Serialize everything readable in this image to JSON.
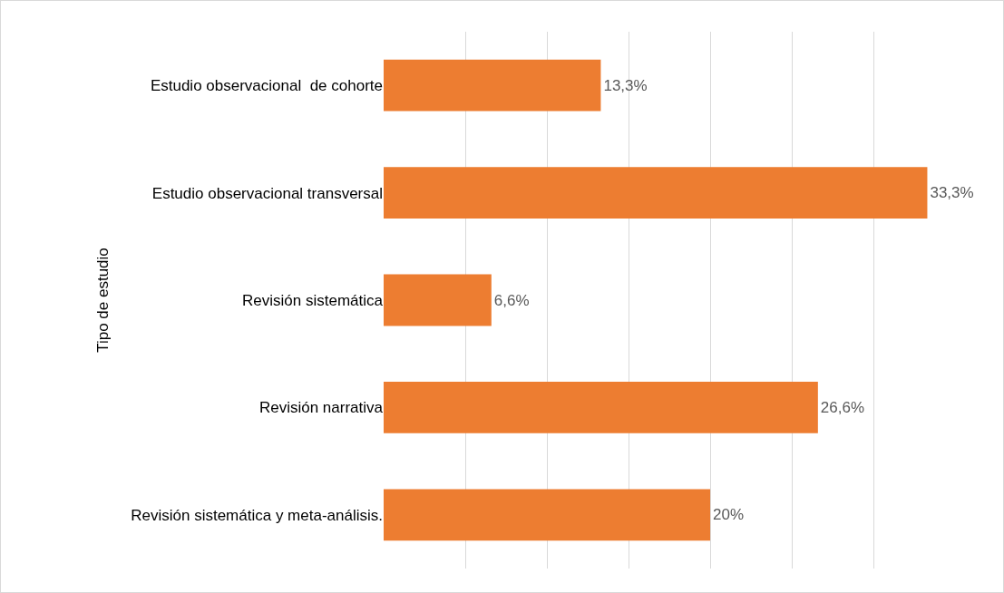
{
  "chart_data": {
    "type": "bar",
    "orientation": "horizontal",
    "ylabel": "Tipo de estudio",
    "categories": [
      "Estudio observacional  de cohorte",
      "Estudio observacional transversal",
      "Revisión sistemática",
      "Revisión narrativa",
      "Revisión sistemática y meta-análisis."
    ],
    "values": [
      13.3,
      33.3,
      6.6,
      26.6,
      20
    ],
    "value_labels": [
      "13,3%",
      "33,3%",
      "6,6%",
      "26,6%",
      "20%"
    ],
    "color": "#ed7d31",
    "xticks": [
      {
        "value": 5,
        "label": null
      },
      {
        "value": 10,
        "label": null
      },
      {
        "value": 15,
        "label": null
      },
      {
        "value": 20,
        "label": null
      },
      {
        "value": 25,
        "label": null
      },
      {
        "value": 30,
        "label": null
      }
    ],
    "grid": "x",
    "tick_labels": "y"
  }
}
